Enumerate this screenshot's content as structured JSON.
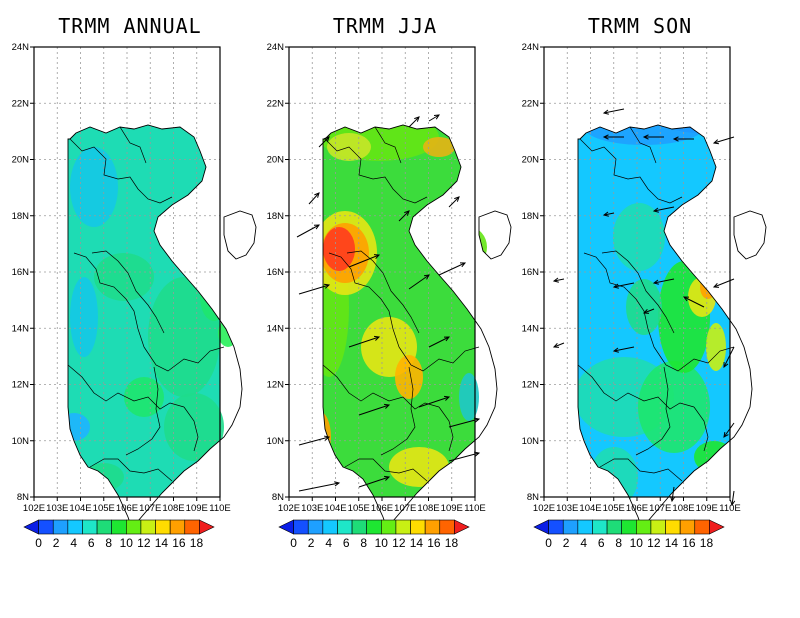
{
  "maps": [
    {
      "title": "TRMM  ANNUAL",
      "theme": "annual",
      "arrows": false
    },
    {
      "title": "TRMM  JJA",
      "theme": "jja",
      "arrows": true
    },
    {
      "title": "TRMM  SON",
      "theme": "son",
      "arrows": true
    }
  ],
  "lat_ticks": [
    "24N",
    "22N",
    "20N",
    "18N",
    "16N",
    "14N",
    "12N",
    "10N",
    "8N"
  ],
  "lon_ticks": [
    "102E",
    "103E",
    "104E",
    "105E",
    "106E",
    "107E",
    "108E",
    "109E",
    "110E"
  ],
  "colorbar": {
    "labels": [
      "0",
      "2",
      "4",
      "6",
      "8",
      "10",
      "12",
      "14",
      "16",
      "18"
    ],
    "colors": [
      "#0a1ee6",
      "#1450ff",
      "#1ea0ff",
      "#14c8ff",
      "#1ee6c8",
      "#1edc78",
      "#1ee632",
      "#64ee14",
      "#c8f014",
      "#ffdc00",
      "#ffa000",
      "#ff6400",
      "#f01e1e"
    ]
  }
}
